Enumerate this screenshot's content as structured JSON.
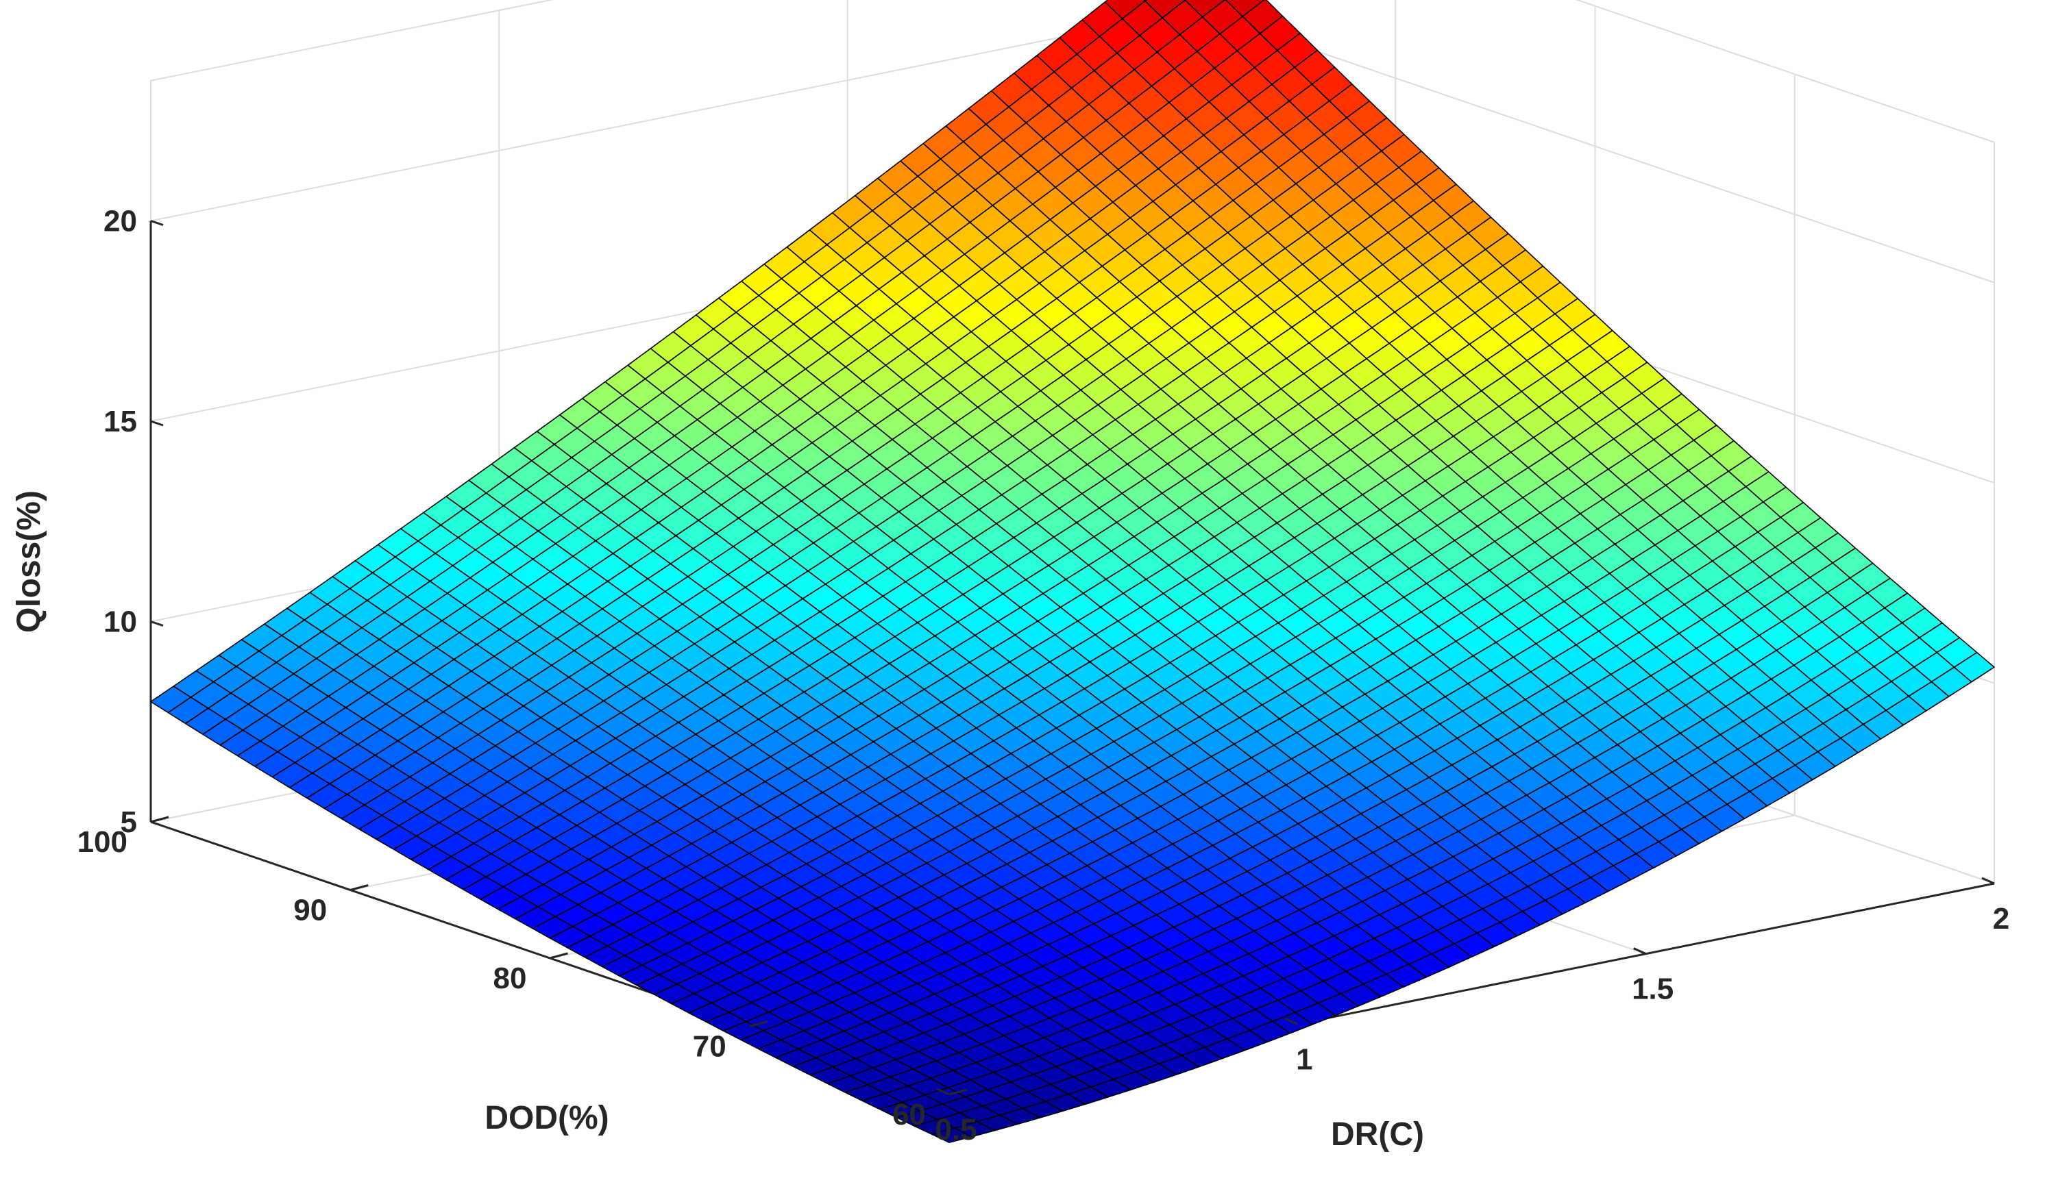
{
  "chart_data": {
    "type": "surface",
    "colormap": "jet",
    "grid": true,
    "xlabel": "DR(C)",
    "ylabel": "DOD(%)",
    "zlabel": "Qloss(%)",
    "x_ticks": [
      "0.5",
      "1",
      "1.5",
      "2"
    ],
    "y_ticks": [
      "60",
      "70",
      "80",
      "90",
      "100"
    ],
    "z_ticks": [
      "5",
      "10",
      "15",
      "20"
    ],
    "xlim": [
      0.5,
      2
    ],
    "ylim": [
      60,
      100
    ],
    "zlim": [
      5,
      20
    ],
    "clim": [
      3.5,
      22.5
    ],
    "grid_size": [
      46,
      46
    ],
    "corners": [
      {
        "x": 0.5,
        "y": 100,
        "z": 8.0
      },
      {
        "x": 0.5,
        "y": 60,
        "z": 3.8
      },
      {
        "x": 2,
        "y": 60,
        "z": 10.4
      },
      {
        "x": 2,
        "y": 100,
        "z": 22.0
      }
    ],
    "edge_midpoints": [
      {
        "x": 1.25,
        "y": 60,
        "z": 5.8
      },
      {
        "x": 2,
        "y": 80,
        "z": 15.8
      },
      {
        "x": 1.25,
        "y": 100,
        "z": 14.6
      },
      {
        "x": 0.5,
        "y": 80,
        "z": 5.5
      }
    ],
    "center": {
      "x": 1.25,
      "y": 80,
      "z": 10.1
    }
  }
}
